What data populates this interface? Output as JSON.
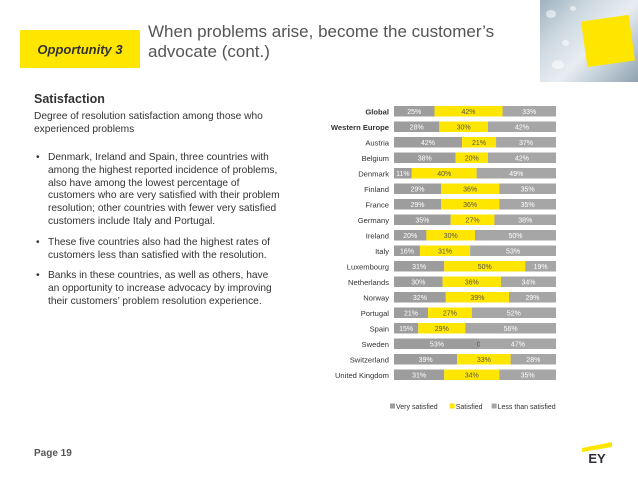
{
  "header": {
    "badge": "Opportunity 3",
    "title": "When problems arise, become the customer’s advocate (cont.)"
  },
  "content": {
    "heading": "Satisfaction",
    "intro": "Degree of resolution satisfaction among those who experienced problems",
    "bullets": [
      "Denmark, Ireland and Spain, three countries with among the highest reported incidence of problems, also have among the lowest percentage of customers who are very satisfied with their problem resolution; other countries with fewer very satisfied customers include Italy and Portugal.",
      "These five countries also had the highest rates of customers less than satisfied with the resolution.",
      "Banks in these countries, as well as others, have an opportunity to increase advocacy by improving their customers’ problem resolution experience."
    ]
  },
  "footer": {
    "page": "Page 19",
    "logo_text": "EY"
  },
  "colors": {
    "very_satisfied": "#9d9d9d",
    "satisfied": "#ffe600",
    "less_than_satisfied": "#a6a6a6",
    "accent": "#ffe600"
  },
  "chart_data": {
    "type": "bar",
    "orientation": "horizontal",
    "stacked": "100%",
    "categories": [
      "Global",
      "Western Europe",
      "Austria",
      "Belgium",
      "Denmark",
      "Finland",
      "France",
      "Germany",
      "Ireland",
      "Italy",
      "Luxembourg",
      "Netherlands",
      "Norway",
      "Portugal",
      "Spain",
      "Sweden",
      "Switzerland",
      "United Kingdom"
    ],
    "bold_categories": [
      "Global",
      "Western Europe"
    ],
    "series": [
      {
        "name": "Very satisfied",
        "values": [
          25,
          28,
          42,
          38,
          11,
          29,
          29,
          35,
          20,
          16,
          31,
          30,
          32,
          21,
          15,
          53,
          39,
          31
        ],
        "labels": [
          "25%",
          "28%",
          "42%",
          "38%",
          "11%",
          "29%",
          "29%",
          "35%",
          "20%",
          "16%",
          "31%",
          "30%",
          "32%",
          "21%",
          "15%",
          "53%",
          "39%",
          "31%"
        ]
      },
      {
        "name": "Satisfied",
        "values": [
          42,
          30,
          21,
          20,
          40,
          36,
          36,
          27,
          30,
          31,
          50,
          36,
          39,
          27,
          29,
          0,
          33,
          34
        ],
        "labels": [
          "42%",
          "30%",
          "21%",
          "20%",
          "40%",
          "36%",
          "36%",
          "27%",
          "30%",
          "31%",
          "50%",
          "36%",
          "39%",
          "27%",
          "29%",
          "0%",
          "33%",
          "34%"
        ]
      },
      {
        "name": "Less than satisfied",
        "values": [
          33,
          42,
          37,
          42,
          49,
          35,
          35,
          38,
          50,
          53,
          19,
          34,
          29,
          52,
          56,
          47,
          28,
          35
        ],
        "labels": [
          "33%",
          "42%",
          "37%",
          "42%",
          "49%",
          "35%",
          "35%",
          "38%",
          "50%",
          "53%",
          "19%",
          "34%",
          "29%",
          "52%",
          "56%",
          "47%",
          "28%",
          "35%"
        ]
      }
    ],
    "legend": [
      "Very satisfied",
      "Satisfied",
      "Less than satisfied"
    ],
    "legend_position": "bottom",
    "xlim": [
      0,
      100
    ],
    "grid": false
  }
}
